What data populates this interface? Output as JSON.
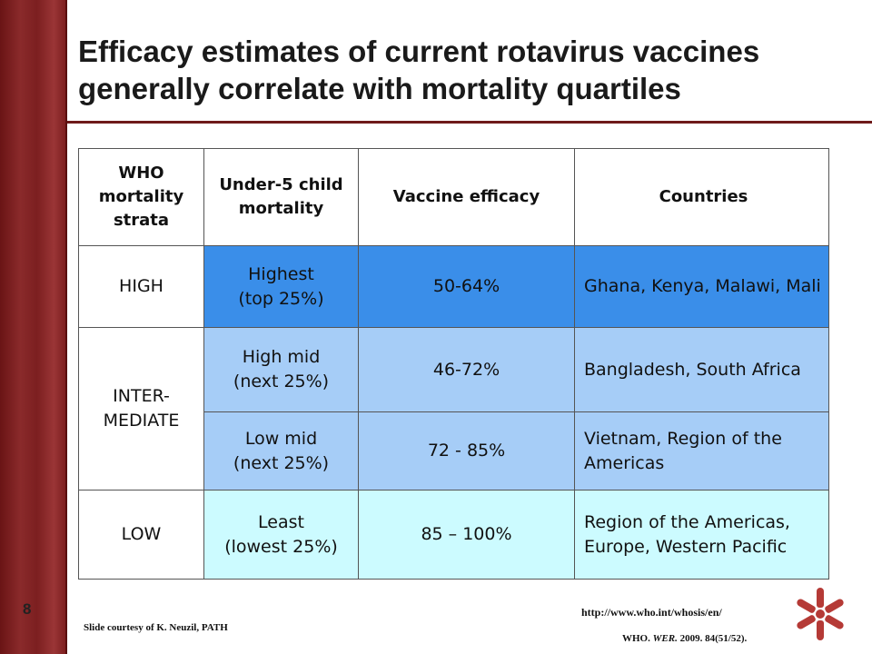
{
  "slide": {
    "title": "Efficacy estimates of current rotavirus vaccines generally correlate with mortality quartiles",
    "page_number": "8",
    "courtesy": "Slide courtesy of K. Neuzil, PATH",
    "url": "http://www.who.int/whosis/en/",
    "reference_prefix": "WHO.",
    "reference_journal": "WER.",
    "reference_suffix": "2009. 84(51/52).",
    "logo_icon": "who-style-emblem-icon",
    "colors": {
      "side_bar": "#7c1f20",
      "title_rule": "#6e1a1a",
      "highest_row": "#3a8ee9",
      "mid_rows": "#a6cdf7",
      "least_row": "#ccfbff"
    }
  },
  "table": {
    "headers": [
      "WHO mortality strata",
      "Under-5 child mortality",
      "Vaccine efficacy",
      "Countries"
    ],
    "strata": {
      "high": "HIGH",
      "intermediate_line1": "INTER-",
      "intermediate_line2": "MEDIATE",
      "low": "LOW"
    },
    "rows": [
      {
        "mortality_line1": "Highest",
        "mortality_line2": "(top 25%)",
        "efficacy": "50-64%",
        "countries": "Ghana, Kenya, Malawi, Mali"
      },
      {
        "mortality_line1": "High mid",
        "mortality_line2": "(next 25%)",
        "efficacy": "46-72%",
        "countries": "Bangladesh, South Africa"
      },
      {
        "mortality_line1": "Low mid",
        "mortality_line2": "(next 25%)",
        "efficacy": "72 - 85%",
        "countries": "Vietnam, Region of the Americas"
      },
      {
        "mortality_line1": "Least",
        "mortality_line2": "(lowest 25%)",
        "efficacy": "85 – 100%",
        "countries": "Region of the Americas, Europe, Western Pacific"
      }
    ]
  }
}
